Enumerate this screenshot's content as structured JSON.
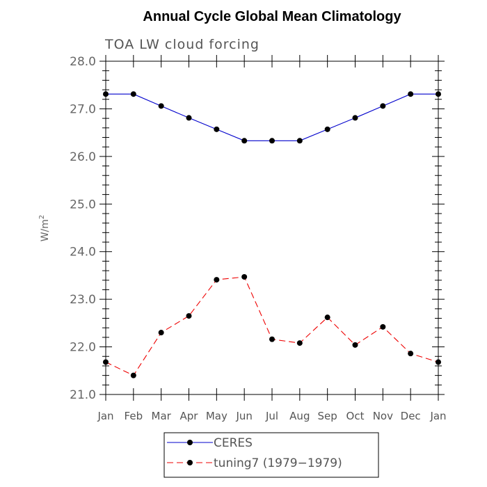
{
  "chart_data": {
    "type": "line",
    "title": "Annual Cycle Global Mean Climatology",
    "subtitle": "TOA LW cloud forcing",
    "ylabel": "W/m",
    "ylabel_sup": "2",
    "xlabel": "",
    "categories": [
      "Jan",
      "Feb",
      "Mar",
      "Apr",
      "May",
      "Jun",
      "Jul",
      "Aug",
      "Sep",
      "Oct",
      "Nov",
      "Dec",
      "Jan"
    ],
    "ylim": [
      21.0,
      28.0
    ],
    "yticks": [
      21.0,
      22.0,
      23.0,
      24.0,
      25.0,
      26.0,
      27.0,
      28.0
    ],
    "ytick_labels": [
      "21.0",
      "22.0",
      "23.0",
      "24.0",
      "25.0",
      "26.0",
      "27.0",
      "28.0"
    ],
    "grid": false,
    "legend_position": "bottom",
    "series": [
      {
        "name": "CERES",
        "color": "#0000cc",
        "dash": "solid",
        "marker": "circle",
        "values": [
          27.31,
          27.31,
          27.06,
          26.81,
          26.57,
          26.33,
          26.33,
          26.33,
          26.57,
          26.81,
          27.06,
          27.31,
          27.31
        ]
      },
      {
        "name": "tuning7 (1979−1979)",
        "color": "#ee0000",
        "dash": "dashed",
        "marker": "circle",
        "values": [
          21.68,
          21.4,
          22.3,
          22.65,
          23.41,
          23.47,
          22.16,
          22.08,
          22.62,
          22.04,
          22.42,
          21.86,
          21.68
        ]
      }
    ]
  }
}
